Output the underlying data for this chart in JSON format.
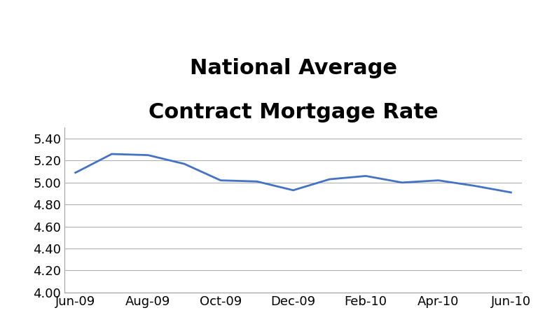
{
  "title_line1": "National Average",
  "title_line2": "Contract Mortgage Rate",
  "x_labels": [
    "Jun-09",
    "Aug-09",
    "Oct-09",
    "Dec-09",
    "Feb-10",
    "Apr-10",
    "Jun-10"
  ],
  "x_values": [
    0,
    2,
    4,
    6,
    8,
    10,
    12
  ],
  "y_data_x": [
    0,
    1,
    2,
    3,
    4,
    5,
    6,
    7,
    8,
    9,
    10,
    11,
    12
  ],
  "y_data_y": [
    5.09,
    5.26,
    5.25,
    5.17,
    5.02,
    5.01,
    4.93,
    5.03,
    5.06,
    5.0,
    5.02,
    4.97,
    4.91
  ],
  "line_color": "#4472C4",
  "background_color": "#ffffff",
  "ylim": [
    4.0,
    5.5
  ],
  "yticks": [
    4.0,
    4.2,
    4.4,
    4.6,
    4.8,
    5.0,
    5.2,
    5.4
  ],
  "title_fontsize": 22,
  "title_fontweight": "bold",
  "tick_label_fontsize": 13,
  "line_width": 2.0,
  "grid_color": "#b0b0b0",
  "grid_linewidth": 0.8,
  "border_color": "#a0a0a0"
}
